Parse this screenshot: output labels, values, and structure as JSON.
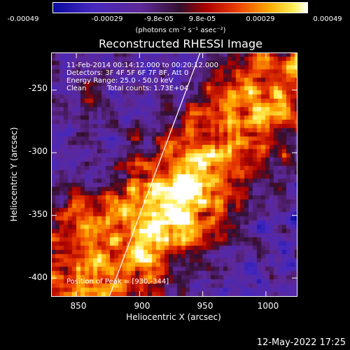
{
  "colorbar": {
    "ticks": [
      "-0.00049",
      "-0.00029",
      "-9.8e-05",
      "9.8e-05",
      "0.00029",
      "0.00049"
    ],
    "unit_label": "(photons cm⁻² s⁻¹ asec⁻²)",
    "range": [
      -0.00049,
      0.00049
    ]
  },
  "chart_data": {
    "type": "heatmap",
    "title": "Reconstructed RHESSI Image",
    "xlabel": "Heliocentric X (arcsec)",
    "ylabel": "Heliocentric Y (arcsec)",
    "xlim": [
      830,
      1025
    ],
    "ylim": [
      -415,
      -220
    ],
    "x_ticks": [
      "850",
      "900",
      "950",
      "1000"
    ],
    "y_ticks": [
      "-250",
      "-300",
      "-350",
      "-400"
    ],
    "x_tick_values": [
      850,
      900,
      950,
      1000
    ],
    "y_tick_values": [
      -250,
      -300,
      -350,
      -400
    ],
    "peak_position": [
      930,
      -344
    ],
    "limb_line": [
      [
        876,
        -415
      ],
      [
        948,
        -220
      ]
    ],
    "colormap": "blue-purple-red-yellow-white",
    "annotations": {
      "time_range": "11-Feb-2014 00:14:12.000 to 00:20:12.000",
      "detectors": "Detectors: 3F 4F 5F 6F 7F 8F, Att 0",
      "energy": "Energy Range: 25.0 - 50.0 keV",
      "method": "Clean",
      "counts": "Total counts: 1.73E+04",
      "peak": "Position of Peak = [930,-344]"
    }
  },
  "footer": {
    "date": "12-May-2022 17:25"
  }
}
